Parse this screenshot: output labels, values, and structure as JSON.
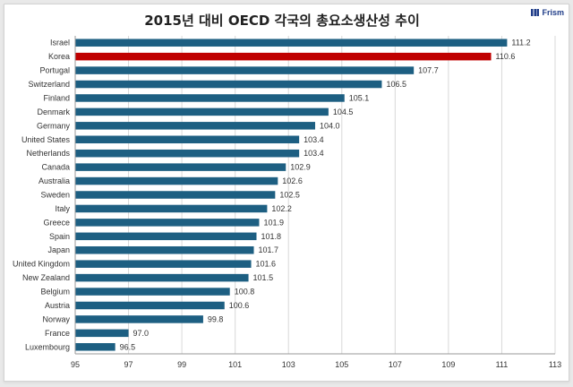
{
  "brand": {
    "name": "Frism",
    "icon": "bars-logo-icon"
  },
  "chart_data": {
    "type": "bar",
    "orientation": "horizontal",
    "title": "2015년 대비 OECD 각국의 총요소생산성 추이",
    "xlabel": "",
    "ylabel": "",
    "xlim": [
      95,
      113
    ],
    "ticks": [
      95,
      97,
      99,
      101,
      103,
      105,
      107,
      109,
      111,
      113
    ],
    "grid": true,
    "colors": {
      "default": "#1d5f82",
      "highlight": "#c00000"
    },
    "highlight": "Korea",
    "categories": [
      "Israel",
      "Korea",
      "Portugal",
      "Switzerland",
      "Finland",
      "Denmark",
      "Germany",
      "United States",
      "Netherlands",
      "Canada",
      "Australia",
      "Sweden",
      "Italy",
      "Greece",
      "Spain",
      "Japan",
      "United Kingdom",
      "New Zealand",
      "Belgium",
      "Austria",
      "Norway",
      "France",
      "Luxembourg"
    ],
    "values": [
      111.2,
      110.6,
      107.7,
      106.5,
      105.1,
      104.5,
      104.0,
      103.4,
      103.4,
      102.9,
      102.6,
      102.5,
      102.2,
      101.9,
      101.8,
      101.7,
      101.6,
      101.5,
      100.8,
      100.6,
      99.8,
      97.0,
      96.5
    ],
    "value_labels": [
      "111.2",
      "110.6",
      "107.7",
      "106.5",
      "105.1",
      "104.5",
      "104.0",
      "103.4",
      "103.4",
      "102.9",
      "102.6",
      "102.5",
      "102.2",
      "101.9",
      "101.8",
      "101.7",
      "101.6",
      "101.5",
      "100.8",
      "100.6",
      "99.8",
      "97.0",
      "96.5"
    ]
  }
}
